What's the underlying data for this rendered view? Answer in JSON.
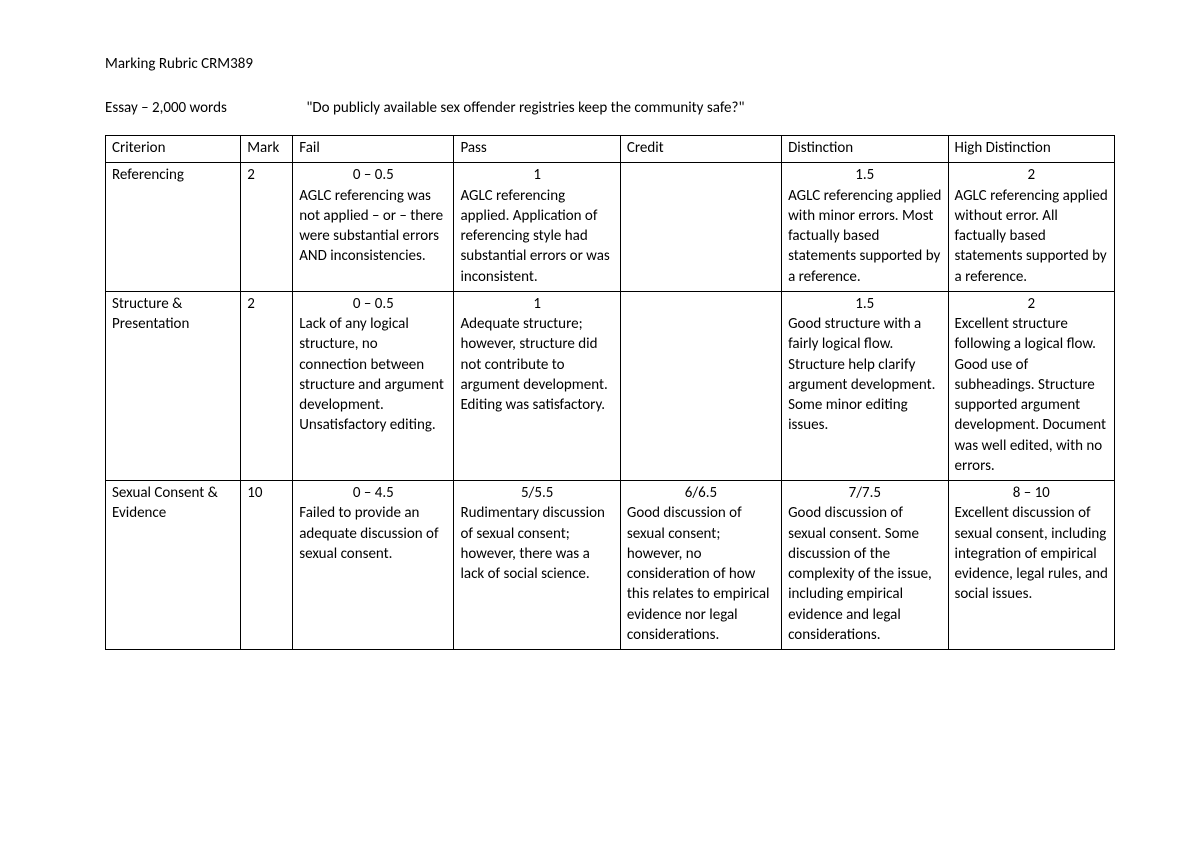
{
  "header": {
    "title": "Marking Rubric CRM389",
    "essay_label": "Essay – 2,000 words",
    "essay_question": "\"Do publicly available sex offender registries keep the community safe?\""
  },
  "table": {
    "columns": [
      "Criterion",
      "Mark",
      "Fail",
      "Pass",
      "Credit",
      "Distinction",
      "High Distinction"
    ],
    "rows": [
      {
        "criterion": "Referencing",
        "mark": "2",
        "fail": {
          "score": "0 – 0.5",
          "desc": "AGLC referencing was not applied – or – there were substantial errors AND inconsistencies."
        },
        "pass": {
          "score": "1",
          "desc": "AGLC referencing applied.  Application of referencing style had substantial errors or was inconsistent."
        },
        "credit": {
          "score": "",
          "desc": ""
        },
        "distinction": {
          "score": "1.5",
          "desc": "AGLC referencing applied with minor errors.  Most factually based statements supported by a reference."
        },
        "hd": {
          "score": "2",
          "desc": "AGLC referencing applied without error.  All factually based statements supported by a reference."
        }
      },
      {
        "criterion": "Structure & Presentation",
        "mark": "2",
        "fail": {
          "score": "0 – 0.5",
          "desc": "Lack of any logical structure, no connection between structure and argument development. Unsatisfactory editing."
        },
        "pass": {
          "score": "1",
          "desc": "Adequate structure; however, structure did not contribute to argument development. Editing was satisfactory."
        },
        "credit": {
          "score": "",
          "desc": ""
        },
        "distinction": {
          "score": "1.5",
          "desc": "Good structure with a fairly logical flow. Structure help clarify argument development. Some minor editing issues."
        },
        "hd": {
          "score": "2",
          "desc": "Excellent structure following a logical flow.  Good use of subheadings. Structure supported argument development. Document was well edited, with no errors."
        }
      },
      {
        "criterion": "Sexual Consent & Evidence",
        "mark": "10",
        "fail": {
          "score": "0 – 4.5",
          "desc": "Failed to provide an adequate discussion of sexual consent."
        },
        "pass": {
          "score": "5/5.5",
          "desc": "Rudimentary discussion of sexual consent; however, there was a lack of social science."
        },
        "credit": {
          "score": "6/6.5",
          "desc": "Good discussion of sexual consent; however, no consideration of how this relates to empirical evidence nor legal considerations."
        },
        "distinction": {
          "score": "7/7.5",
          "desc": "Good discussion of sexual consent. Some discussion of the complexity of the issue, including empirical evidence and legal considerations."
        },
        "hd": {
          "score": "8 – 10",
          "desc": "Excellent discussion of sexual consent, including integration of empirical evidence, legal rules, and social issues."
        }
      }
    ]
  }
}
